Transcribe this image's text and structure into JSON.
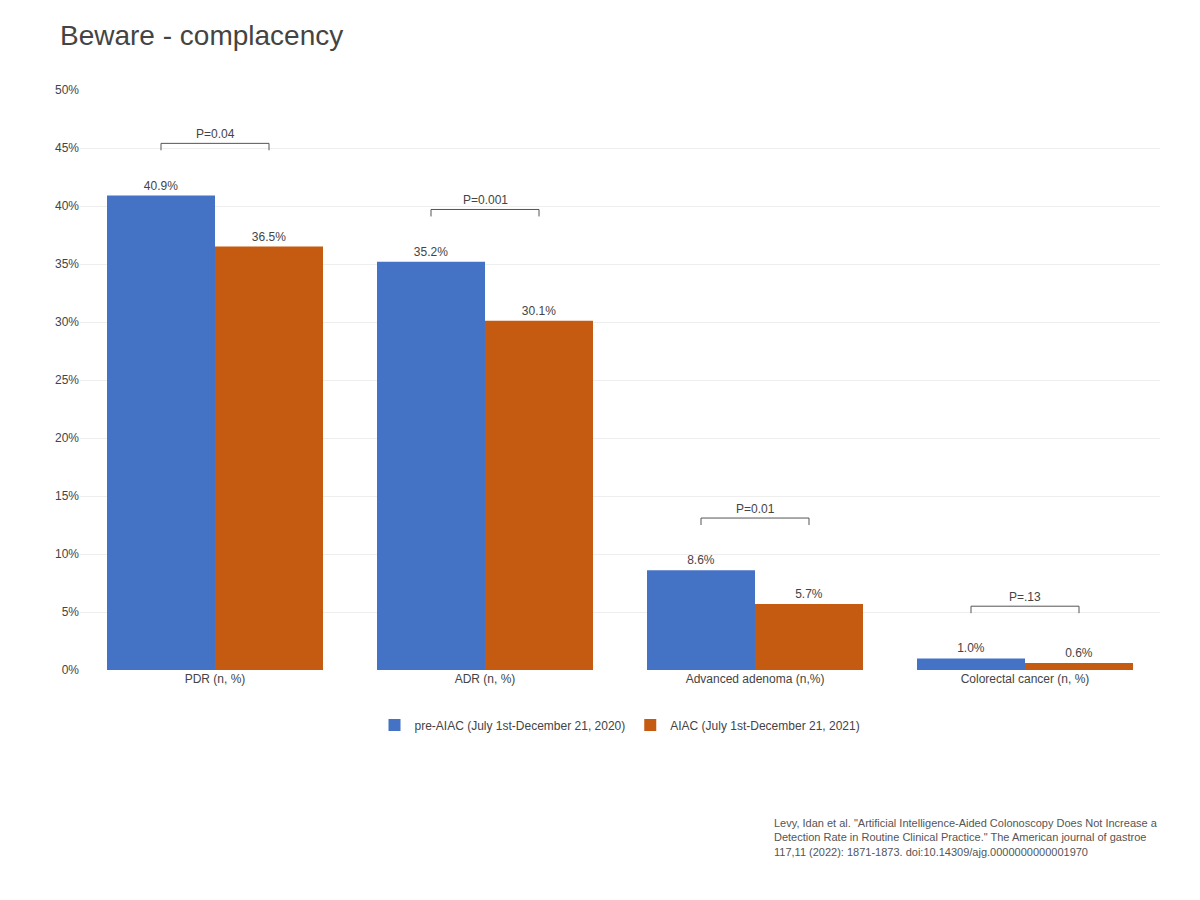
{
  "chart_data": {
    "type": "bar",
    "title": "Beware - complacency",
    "categories": [
      "PDR (n, %)",
      "ADR (n, %)",
      "Advanced adenoma (n,%)",
      "Colorectal cancer (n, %)"
    ],
    "series": [
      {
        "name": "pre-AIAC (July 1st-December 21, 2020)",
        "color": "#4472C4",
        "values": [
          40.9,
          35.2,
          8.6,
          1.0
        ],
        "value_labels": [
          "40.9%",
          "35.2%",
          "8.6%",
          "1.0%"
        ]
      },
      {
        "name": "AIAC (July 1st-December 21, 2021)",
        "color": "#C55A11",
        "values": [
          36.5,
          30.1,
          5.7,
          0.6
        ],
        "value_labels": [
          "36.5%",
          "30.1%",
          "5.7%",
          "0.6%"
        ]
      }
    ],
    "ylim": [
      0,
      50
    ],
    "yticks": [
      {
        "value": 0,
        "label": "0%"
      },
      {
        "value": 5,
        "label": "5%"
      },
      {
        "value": 10,
        "label": "10%"
      },
      {
        "value": 15,
        "label": "15%"
      },
      {
        "value": 20,
        "label": "20%"
      },
      {
        "value": 25,
        "label": "25%"
      },
      {
        "value": 30,
        "label": "30%"
      },
      {
        "value": 35,
        "label": "35%"
      },
      {
        "value": 40,
        "label": "40%"
      },
      {
        "value": 45,
        "label": "45%"
      },
      {
        "value": 50,
        "label": "50%"
      }
    ],
    "grid": true,
    "legend": "bottom",
    "data_labels": true,
    "annotations": [
      {
        "text": "P=0.04",
        "category": "PDR (n, %)"
      },
      {
        "text": "P=0.001",
        "category": "ADR (n, %)"
      },
      {
        "text": "P=0.01",
        "category": "Advanced adenoma (n,%)"
      },
      {
        "text": "P=.13",
        "category": "Colorectal cancer (n, %)"
      },
      {
        "text": "Levy, Idan et al. \"Artificial Intelligence-Aided Colonoscopy Does Not Increase a\nDetection Rate in Routine Clinical Practice.\" The American journal of gastroe\n117,11 (2022): 1871-1873. doi:10.14309/ajg.0000000000001970"
      }
    ]
  }
}
